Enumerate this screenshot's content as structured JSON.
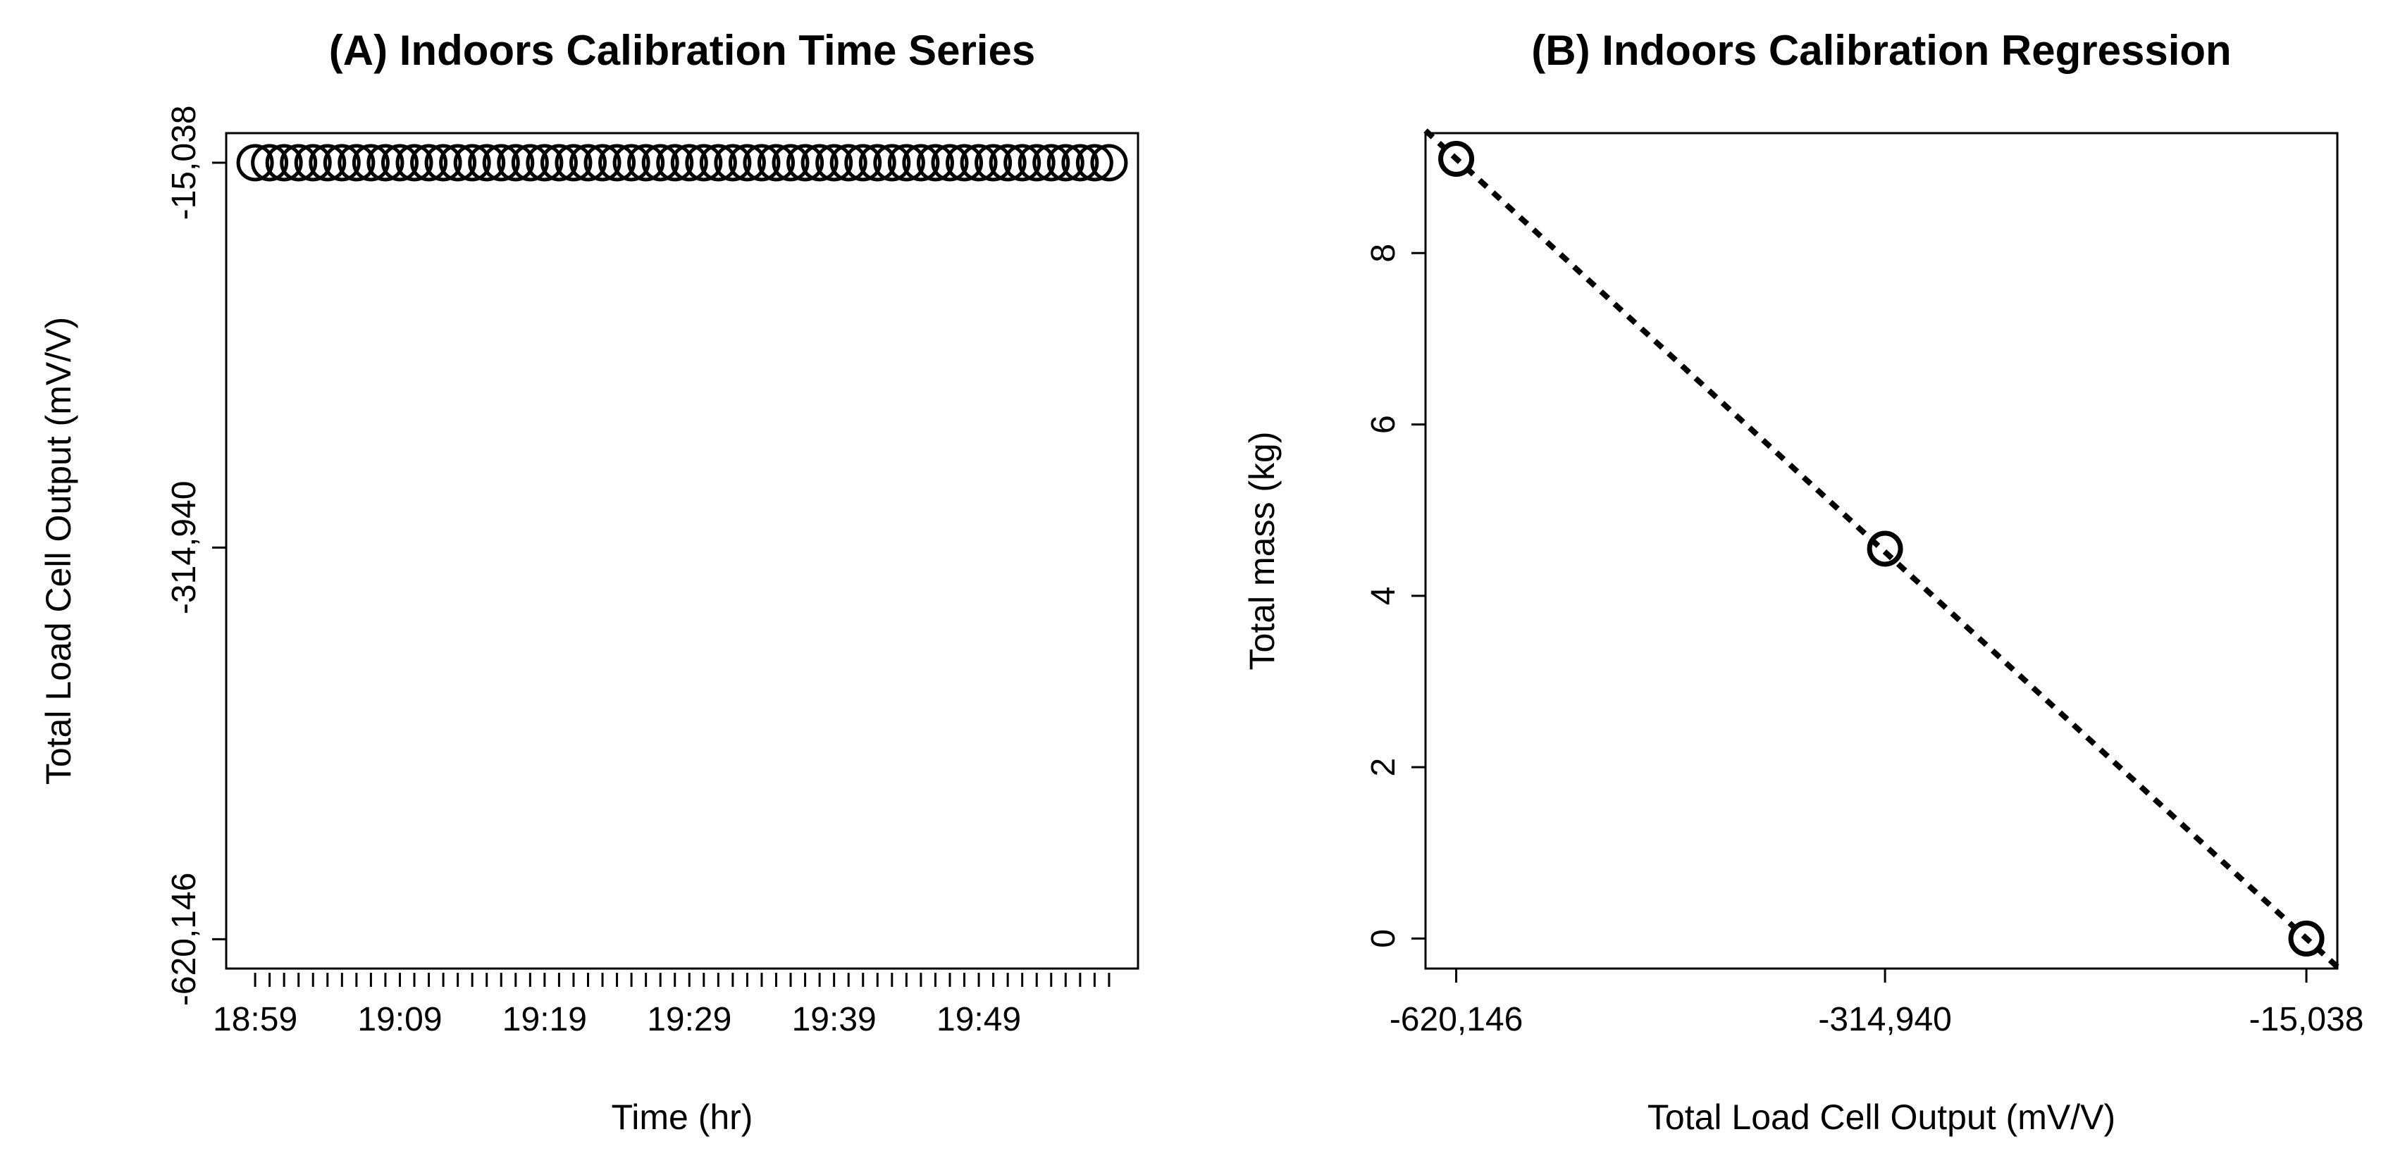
{
  "chart_data": [
    {
      "type": "line",
      "title": "(A) Indoors Calibration Time Series",
      "xlabel": "Time (hr)",
      "ylabel": "Total Load Cell Output (mV/V)",
      "x_unit": "minutes after 18:59",
      "xlim": [
        -2,
        61
      ],
      "ylim": [
        -643000,
        8000
      ],
      "x_tick_values": [
        0,
        10,
        20,
        30,
        40,
        50
      ],
      "x_tick_labels": [
        "18:59",
        "19:09",
        "19:19",
        "19:29",
        "19:39",
        "19:49"
      ],
      "y_tick_values": [
        -15038,
        -314940,
        -620146
      ],
      "y_tick_labels": [
        "-15,038",
        "-314,940",
        "-620,146"
      ],
      "minor_tick_count": 60,
      "series": [
        {
          "name": "load cell output",
          "marker": "open-circle",
          "x": [
            0,
            1,
            2,
            3,
            4,
            5,
            6,
            7,
            8,
            9,
            10,
            11,
            12,
            13,
            14,
            15,
            16,
            17,
            18,
            19,
            20,
            21,
            22,
            23,
            24,
            25,
            26,
            27,
            28,
            29,
            30,
            31,
            32,
            33,
            34,
            35,
            36,
            37,
            38,
            39,
            40,
            41,
            42,
            43,
            44,
            45,
            46,
            47,
            48,
            49,
            50,
            51,
            52,
            53,
            54,
            55,
            56,
            57,
            58,
            59
          ],
          "y": [
            -15038,
            -15038,
            -15038,
            -15038,
            -15038,
            -15038,
            -15038,
            -15038,
            -15038,
            -15038,
            -15038,
            -15038,
            -15038,
            -15038,
            -15038,
            -15038,
            -15038,
            -15038,
            -15038,
            -15038,
            -15038,
            -15038,
            -15038,
            -15038,
            -15038,
            -15038,
            -15038,
            -15038,
            -15038,
            -15038,
            -15038,
            -15038,
            -15038,
            -15038,
            -15038,
            -15038,
            -15038,
            -15038,
            -15038,
            -15038,
            -15038,
            -15038,
            -15038,
            -15038,
            -15038,
            -15038,
            -15038,
            -15038,
            -15038,
            -15038,
            -15038,
            -15038,
            -15038,
            -15038,
            -15038,
            -15038,
            -15038,
            -15038,
            -15038,
            -15038
          ]
        }
      ]
    },
    {
      "type": "scatter",
      "title": "(B) Indoors  Calibration Regression",
      "xlabel": "Total Load Cell Output (mV/V)",
      "ylabel": "Total mass (kg)",
      "xlim": [
        -642000,
        7000
      ],
      "ylim": [
        -0.35,
        9.4
      ],
      "x_tick_values": [
        -620146,
        -314940,
        -15038
      ],
      "x_tick_labels": [
        "-620,146",
        "-314,940",
        "-15,038"
      ],
      "y_tick_values": [
        0,
        2,
        4,
        6,
        8
      ],
      "y_tick_labels": [
        "0",
        "2",
        "4",
        "6",
        "8"
      ],
      "points": {
        "x": [
          -620146,
          -314940,
          -15038
        ],
        "y": [
          9.1,
          4.55,
          0
        ]
      },
      "fit_line": {
        "style": "dashed",
        "x": [
          -642000,
          7000
        ],
        "y": [
          9.43,
          -0.33
        ]
      }
    }
  ]
}
